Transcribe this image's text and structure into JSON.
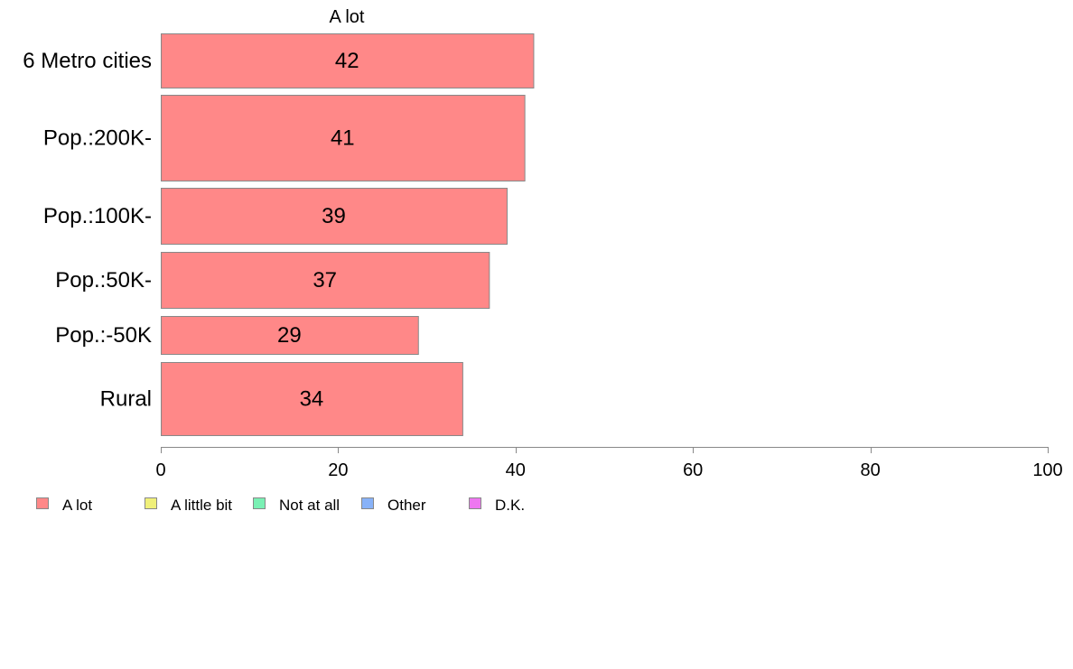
{
  "chart_data": {
    "type": "bar",
    "orientation": "horizontal",
    "title": "A lot",
    "categories": [
      "6 Metro cities",
      "Pop.:200K-",
      "Pop.:100K-",
      "Pop.:50K-",
      "Pop.:-50K",
      "Rural"
    ],
    "series": [
      {
        "name": "A lot",
        "values": [
          42,
          41,
          39,
          37,
          29,
          34
        ]
      }
    ],
    "data_labels": [
      "42",
      "41",
      "39",
      "37",
      "29",
      "34"
    ],
    "xlim": [
      0,
      100
    ],
    "x_ticks": [
      0,
      20,
      40,
      60,
      80,
      100
    ],
    "x_tick_labels": [
      "0",
      "20",
      "40",
      "60",
      "80",
      "100"
    ],
    "bar_fill": "#FF8888",
    "bar_stroke": "#888888",
    "axis_color": "#888888",
    "grid": false,
    "legend_position": "bottom",
    "legend": [
      {
        "label": "A lot",
        "color": "#FF8888"
      },
      {
        "label": "A little bit",
        "color": "#F0F07A"
      },
      {
        "label": "Not at all",
        "color": "#7AF0B4"
      },
      {
        "label": "Other",
        "color": "#88B2F8"
      },
      {
        "label": "D.K.",
        "color": "#EE77F0"
      }
    ]
  }
}
